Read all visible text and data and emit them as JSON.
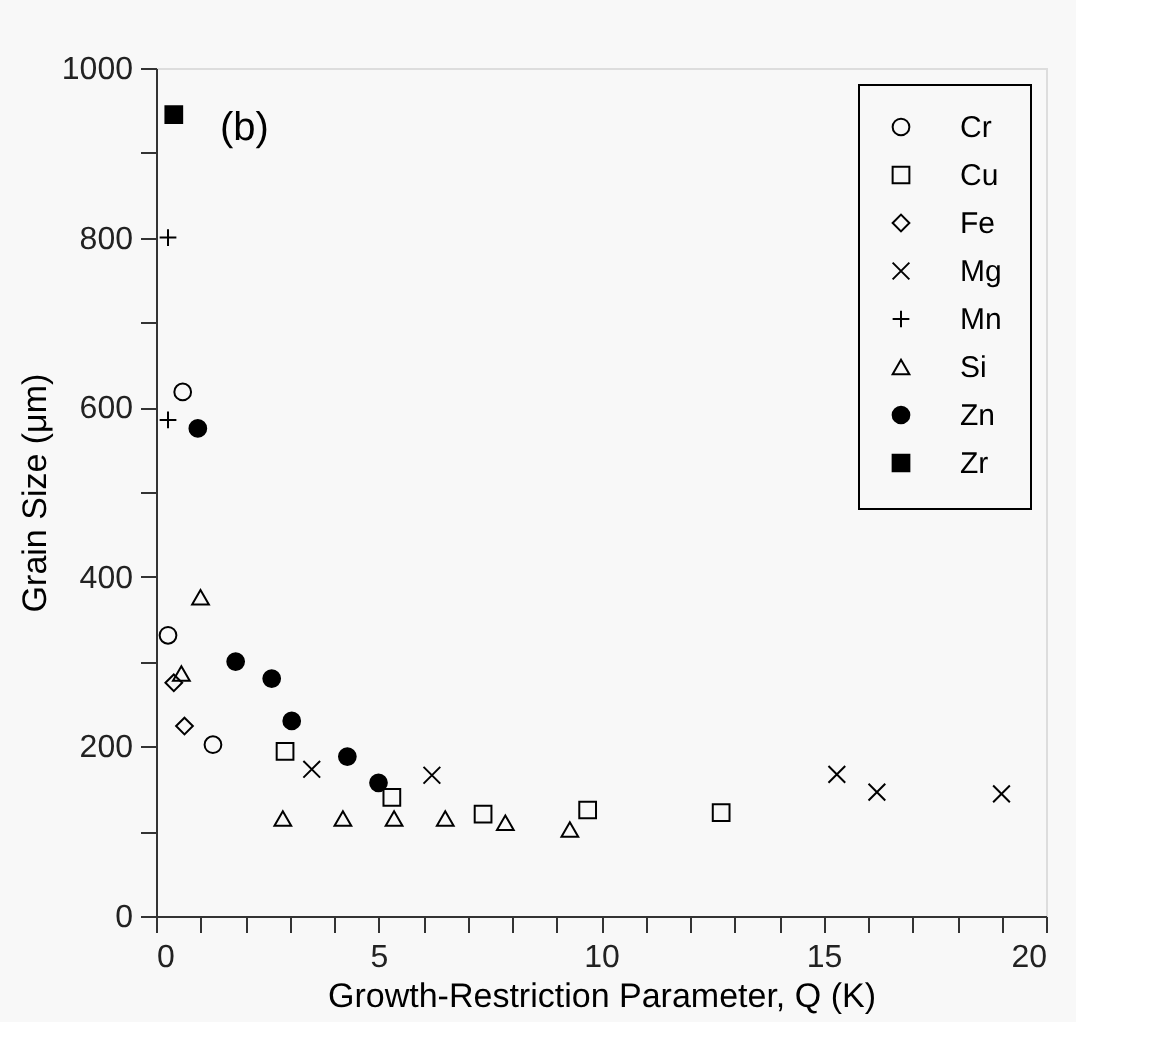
{
  "chart_data": {
    "type": "scatter",
    "xlabel": "Growth-Restriction Parameter, Q (K)",
    "ylabel": "Grain Size (μm)",
    "annotations": [
      "(b)"
    ],
    "xlim": [
      0,
      20
    ],
    "ylim": [
      0,
      1000
    ],
    "xticks": [
      0,
      {
        "value": 1,
        "label": null
      },
      {
        "value": 2,
        "label": null
      },
      {
        "value": 3,
        "label": null
      },
      {
        "value": 4,
        "label": null
      },
      5,
      {
        "value": 6,
        "label": null
      },
      {
        "value": 7,
        "label": null
      },
      {
        "value": 8,
        "label": null
      },
      {
        "value": 9,
        "label": null
      },
      10,
      {
        "value": 11,
        "label": null
      },
      {
        "value": 12,
        "label": null
      },
      {
        "value": 13,
        "label": null
      },
      {
        "value": 14,
        "label": null
      },
      15,
      {
        "value": 16,
        "label": null
      },
      {
        "value": 17,
        "label": null
      },
      {
        "value": 18,
        "label": null
      },
      {
        "value": 19,
        "label": null
      },
      20
    ],
    "yticks": [
      0,
      {
        "value": 100,
        "label": null
      },
      200,
      {
        "value": 300,
        "label": null
      },
      400,
      {
        "value": 500,
        "label": null
      },
      600,
      {
        "value": 700,
        "label": null
      },
      800,
      {
        "value": 900,
        "label": null
      },
      1000
    ],
    "grid": false,
    "legend": "top right",
    "series": [
      {
        "name": "Cr",
        "color": "#000000",
        "marker": "circle",
        "x": [
          0.6,
          0.27,
          1.28
        ],
        "values": [
          618,
          331,
          202
        ]
      },
      {
        "name": "Cu",
        "color": "#000000",
        "marker": "square",
        "x": [
          2.9,
          5.3,
          7.35,
          9.7,
          12.7
        ],
        "values": [
          194,
          140,
          120,
          125,
          122
        ]
      },
      {
        "name": "Fe",
        "color": "#000000",
        "marker": "diamond",
        "x": [
          0.4,
          0.64
        ],
        "values": [
          275,
          224
        ]
      },
      {
        "name": "Mg",
        "color": "#000000",
        "marker": "x",
        "x": [
          3.5,
          6.2,
          15.3,
          16.2,
          19.0
        ],
        "values": [
          173,
          166,
          167,
          146,
          144
        ]
      },
      {
        "name": "Mn",
        "color": "#000000",
        "marker": "cross",
        "x": [
          0.27,
          0.27
        ],
        "values": [
          800,
          585
        ]
      },
      {
        "name": "Si",
        "color": "#000000",
        "marker": "triangle",
        "x": [
          1.0,
          0.57,
          2.85,
          4.2,
          5.35,
          6.5,
          7.85,
          9.3
        ],
        "values": [
          376,
          286,
          115,
          115,
          115,
          115,
          110,
          102
        ]
      },
      {
        "name": "Zn",
        "color": "#000000",
        "marker": "circle",
        "x": [
          0.94,
          1.79,
          2.6,
          3.05,
          4.3,
          5.0
        ],
        "values": [
          575,
          300,
          280,
          230,
          188,
          157
        ]
      },
      {
        "name": "Zr",
        "color": "#000000",
        "marker": "square",
        "x": [
          0.4
        ],
        "values": [
          945
        ]
      }
    ]
  }
}
